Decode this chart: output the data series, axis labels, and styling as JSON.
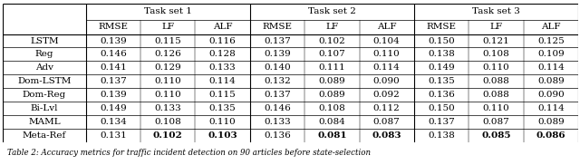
{
  "task_sets": [
    "Task set 1",
    "Task set 2",
    "Task set 3"
  ],
  "metrics": [
    "RMSE",
    "LF",
    "ALF"
  ],
  "row_labels": [
    "LSTM",
    "Reg",
    "Adv",
    "Dom-LSTM",
    "Dom-Reg",
    "Bi-Lvl",
    "MAML",
    "Meta-Ref"
  ],
  "data": {
    "Task set 1": {
      "RMSE": [
        0.139,
        0.146,
        0.141,
        0.137,
        0.139,
        0.149,
        0.134,
        0.131
      ],
      "LF": [
        0.115,
        0.126,
        0.129,
        0.11,
        0.11,
        0.133,
        0.108,
        0.102
      ],
      "ALF": [
        0.116,
        0.128,
        0.133,
        0.114,
        0.115,
        0.135,
        0.11,
        0.103
      ]
    },
    "Task set 2": {
      "RMSE": [
        0.137,
        0.139,
        0.14,
        0.132,
        0.137,
        0.146,
        0.133,
        0.136
      ],
      "LF": [
        0.102,
        0.107,
        0.111,
        0.089,
        0.089,
        0.108,
        0.084,
        0.081
      ],
      "ALF": [
        0.104,
        0.11,
        0.114,
        0.09,
        0.092,
        0.112,
        0.087,
        0.083
      ]
    },
    "Task set 3": {
      "RMSE": [
        0.15,
        0.138,
        0.149,
        0.135,
        0.136,
        0.15,
        0.137,
        0.138
      ],
      "LF": [
        0.121,
        0.108,
        0.11,
        0.088,
        0.088,
        0.11,
        0.087,
        0.085
      ],
      "ALF": [
        0.125,
        0.109,
        0.114,
        0.089,
        0.09,
        0.114,
        0.089,
        0.086
      ]
    }
  },
  "bold_cells": {
    "Task set 1": {
      "LF": 7,
      "ALF": 7
    },
    "Task set 2": {
      "LF": 7,
      "ALF": 7
    },
    "Task set 3": {
      "LF": 7,
      "ALF": 7
    }
  },
  "background_color": "#ffffff",
  "font_size": 7.5,
  "caption_font_size": 6.2,
  "caption_text": "Table 2: Accuracy metrics for traffic incident detection on 90 articles before state-selection"
}
